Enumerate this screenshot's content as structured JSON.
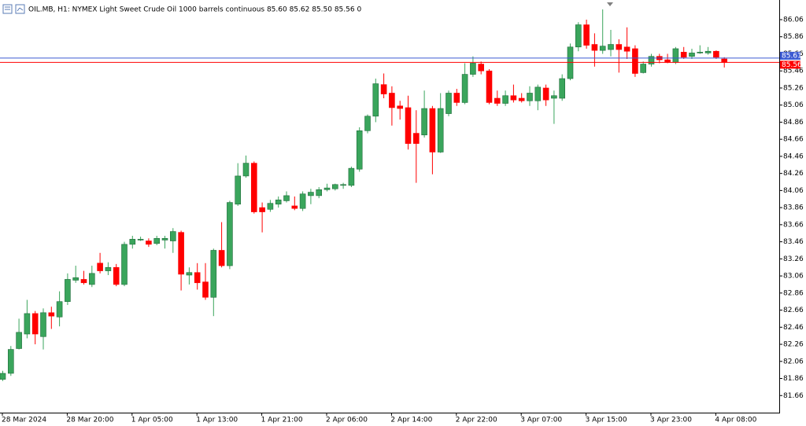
{
  "chart_data": {
    "type": "candlestick",
    "header": "OIL.MB, H1:  NYMEX Light Sweet Crude Oil 1000 barrels continuous  85.60 85.62 85.50 85.56  0",
    "categories": [
      "28 Mar 2024",
      null,
      null,
      null,
      null,
      null,
      null,
      null,
      "28 Mar 20:00",
      null,
      null,
      null,
      null,
      null,
      null,
      null,
      "1 Apr 05:00",
      null,
      null,
      null,
      null,
      null,
      null,
      null,
      "1 Apr 13:00",
      null,
      null,
      null,
      null,
      null,
      null,
      null,
      "1 Apr 21:00",
      null,
      null,
      null,
      null,
      null,
      null,
      null,
      "2 Apr 06:00",
      null,
      null,
      null,
      null,
      null,
      null,
      null,
      "2 Apr 14:00",
      null,
      null,
      null,
      null,
      null,
      null,
      null,
      "2 Apr 22:00",
      null,
      null,
      null,
      null,
      null,
      null,
      null,
      "3 Apr 07:00",
      null,
      null,
      null,
      null,
      null,
      null,
      null,
      "3 Apr 15:00",
      null,
      null,
      null,
      null,
      null,
      null,
      null,
      "3 Apr 23:00",
      null,
      null,
      null,
      null,
      null,
      null,
      null,
      "4 Apr 08:00",
      null
    ],
    "open": [
      81.85,
      81.92,
      82.21,
      82.38,
      82.62,
      82.35,
      82.63,
      82.58,
      82.76,
      83.01,
      83.02,
      82.96,
      83.21,
      83.12,
      83.16,
      82.96,
      83.43,
      83.48,
      83.47,
      83.44,
      83.48,
      83.47,
      83.57,
      83.07,
      83.1,
      82.99,
      82.81,
      83.36,
      83.18,
      83.9,
      84.23,
      84.38,
      83.86,
      83.84,
      83.9,
      83.94,
      83.88,
      83.85,
      84.0,
      84.0,
      84.07,
      84.08,
      84.12,
      84.12,
      84.31,
      84.76,
      84.93,
      85.3,
      85.2,
      85.05,
      85.03,
      84.73,
      84.71,
      85.02,
      84.51,
      84.96,
      85.2,
      85.09,
      85.42,
      85.54,
      85.46,
      85.14,
      85.08,
      85.17,
      85.14,
      85.11,
      85.11,
      85.26,
      85.14,
      85.14,
      85.37,
      85.74,
      86.0,
      85.77,
      85.7,
      85.71,
      85.77,
      85.74,
      85.72,
      85.44,
      85.54,
      85.63,
      85.59,
      85.56,
      85.68,
      85.63,
      85.67,
      85.67,
      85.69,
      85.6
    ],
    "high": [
      81.95,
      82.24,
      82.56,
      82.78,
      82.65,
      82.68,
      82.7,
      82.88,
      83.09,
      83.18,
      83.12,
      83.18,
      83.33,
      83.22,
      83.2,
      83.46,
      83.53,
      83.52,
      83.5,
      83.53,
      83.53,
      83.62,
      83.59,
      83.16,
      83.21,
      83.21,
      83.38,
      83.69,
      83.94,
      84.38,
      84.47,
      84.4,
      83.92,
      83.95,
      83.99,
      84.05,
      83.99,
      84.05,
      84.08,
      84.1,
      84.14,
      84.14,
      84.15,
      84.34,
      84.8,
      84.95,
      85.37,
      85.43,
      85.28,
      85.11,
      85.17,
      85.0,
      85.23,
      85.05,
      85.2,
      85.23,
      85.25,
      85.55,
      85.63,
      85.57,
      85.48,
      85.23,
      85.23,
      85.3,
      85.2,
      85.28,
      85.3,
      85.3,
      85.23,
      85.42,
      85.78,
      86.03,
      86.06,
      85.9,
      86.18,
      85.94,
      85.83,
      85.97,
      85.76,
      85.57,
      85.66,
      85.66,
      85.66,
      85.74,
      85.74,
      85.72,
      85.76,
      85.74,
      85.7,
      85.62
    ],
    "low": [
      81.83,
      81.89,
      82.2,
      82.33,
      82.26,
      82.2,
      82.44,
      82.47,
      82.72,
      82.98,
      82.96,
      82.93,
      83.09,
      83.07,
      82.94,
      82.94,
      83.38,
      83.47,
      83.4,
      83.42,
      83.38,
      83.33,
      82.89,
      82.96,
      82.9,
      82.78,
      82.59,
      83.16,
      83.14,
      83.88,
      84.21,
      83.79,
      83.57,
      83.81,
      83.86,
      83.92,
      83.83,
      83.82,
      83.9,
      83.97,
      84.05,
      84.06,
      84.08,
      84.1,
      84.28,
      84.73,
      84.86,
      85.14,
      84.82,
      84.89,
      84.54,
      84.15,
      84.68,
      84.25,
      84.5,
      84.93,
      85.05,
      85.07,
      85.39,
      85.42,
      85.07,
      85.05,
      85.05,
      85.09,
      85.09,
      85.05,
      85.0,
      85.05,
      84.84,
      85.11,
      85.35,
      85.69,
      85.72,
      85.51,
      85.66,
      85.63,
      85.44,
      85.6,
      85.39,
      85.43,
      85.51,
      85.55,
      85.55,
      85.54,
      85.6,
      85.6,
      85.66,
      85.65,
      85.6,
      85.5
    ],
    "close": [
      81.92,
      82.2,
      82.4,
      82.62,
      82.38,
      82.63,
      82.59,
      82.76,
      83.02,
      83.04,
      82.98,
      83.09,
      83.12,
      83.16,
      82.96,
      83.43,
      83.49,
      83.49,
      83.43,
      83.5,
      83.5,
      83.58,
      83.08,
      83.1,
      82.98,
      82.81,
      83.36,
      83.18,
      83.92,
      84.23,
      84.38,
      83.81,
      83.81,
      83.91,
      83.95,
      84.0,
      83.85,
      84.02,
      84.04,
      84.07,
      84.09,
      84.13,
      84.13,
      84.32,
      84.76,
      84.93,
      85.31,
      85.19,
      85.03,
      85.02,
      84.61,
      84.61,
      85.02,
      84.51,
      85.02,
      85.2,
      85.09,
      85.42,
      85.55,
      85.46,
      85.09,
      85.08,
      85.17,
      85.12,
      85.11,
      85.2,
      85.27,
      85.12,
      85.17,
      85.37,
      85.74,
      86.0,
      85.76,
      85.7,
      85.75,
      85.77,
      85.71,
      85.69,
      85.43,
      85.54,
      85.63,
      85.59,
      85.56,
      85.72,
      85.62,
      85.67,
      85.68,
      85.69,
      85.62,
      85.56
    ],
    "up_color": "#3aa55c",
    "down_color": "#ff0000",
    "ylim": [
      81.46,
      86.29
    ],
    "yticks": [
      86.06,
      85.86,
      85.66,
      85.46,
      85.26,
      85.06,
      84.86,
      84.66,
      84.46,
      84.26,
      84.06,
      83.86,
      83.66,
      83.46,
      83.26,
      83.06,
      82.86,
      82.66,
      82.46,
      82.26,
      82.06,
      81.86,
      81.66
    ],
    "price_lines": [
      {
        "value": 85.61,
        "color": "#3c5ad2"
      },
      {
        "value": 85.56,
        "color": "#ff0000"
      }
    ]
  }
}
